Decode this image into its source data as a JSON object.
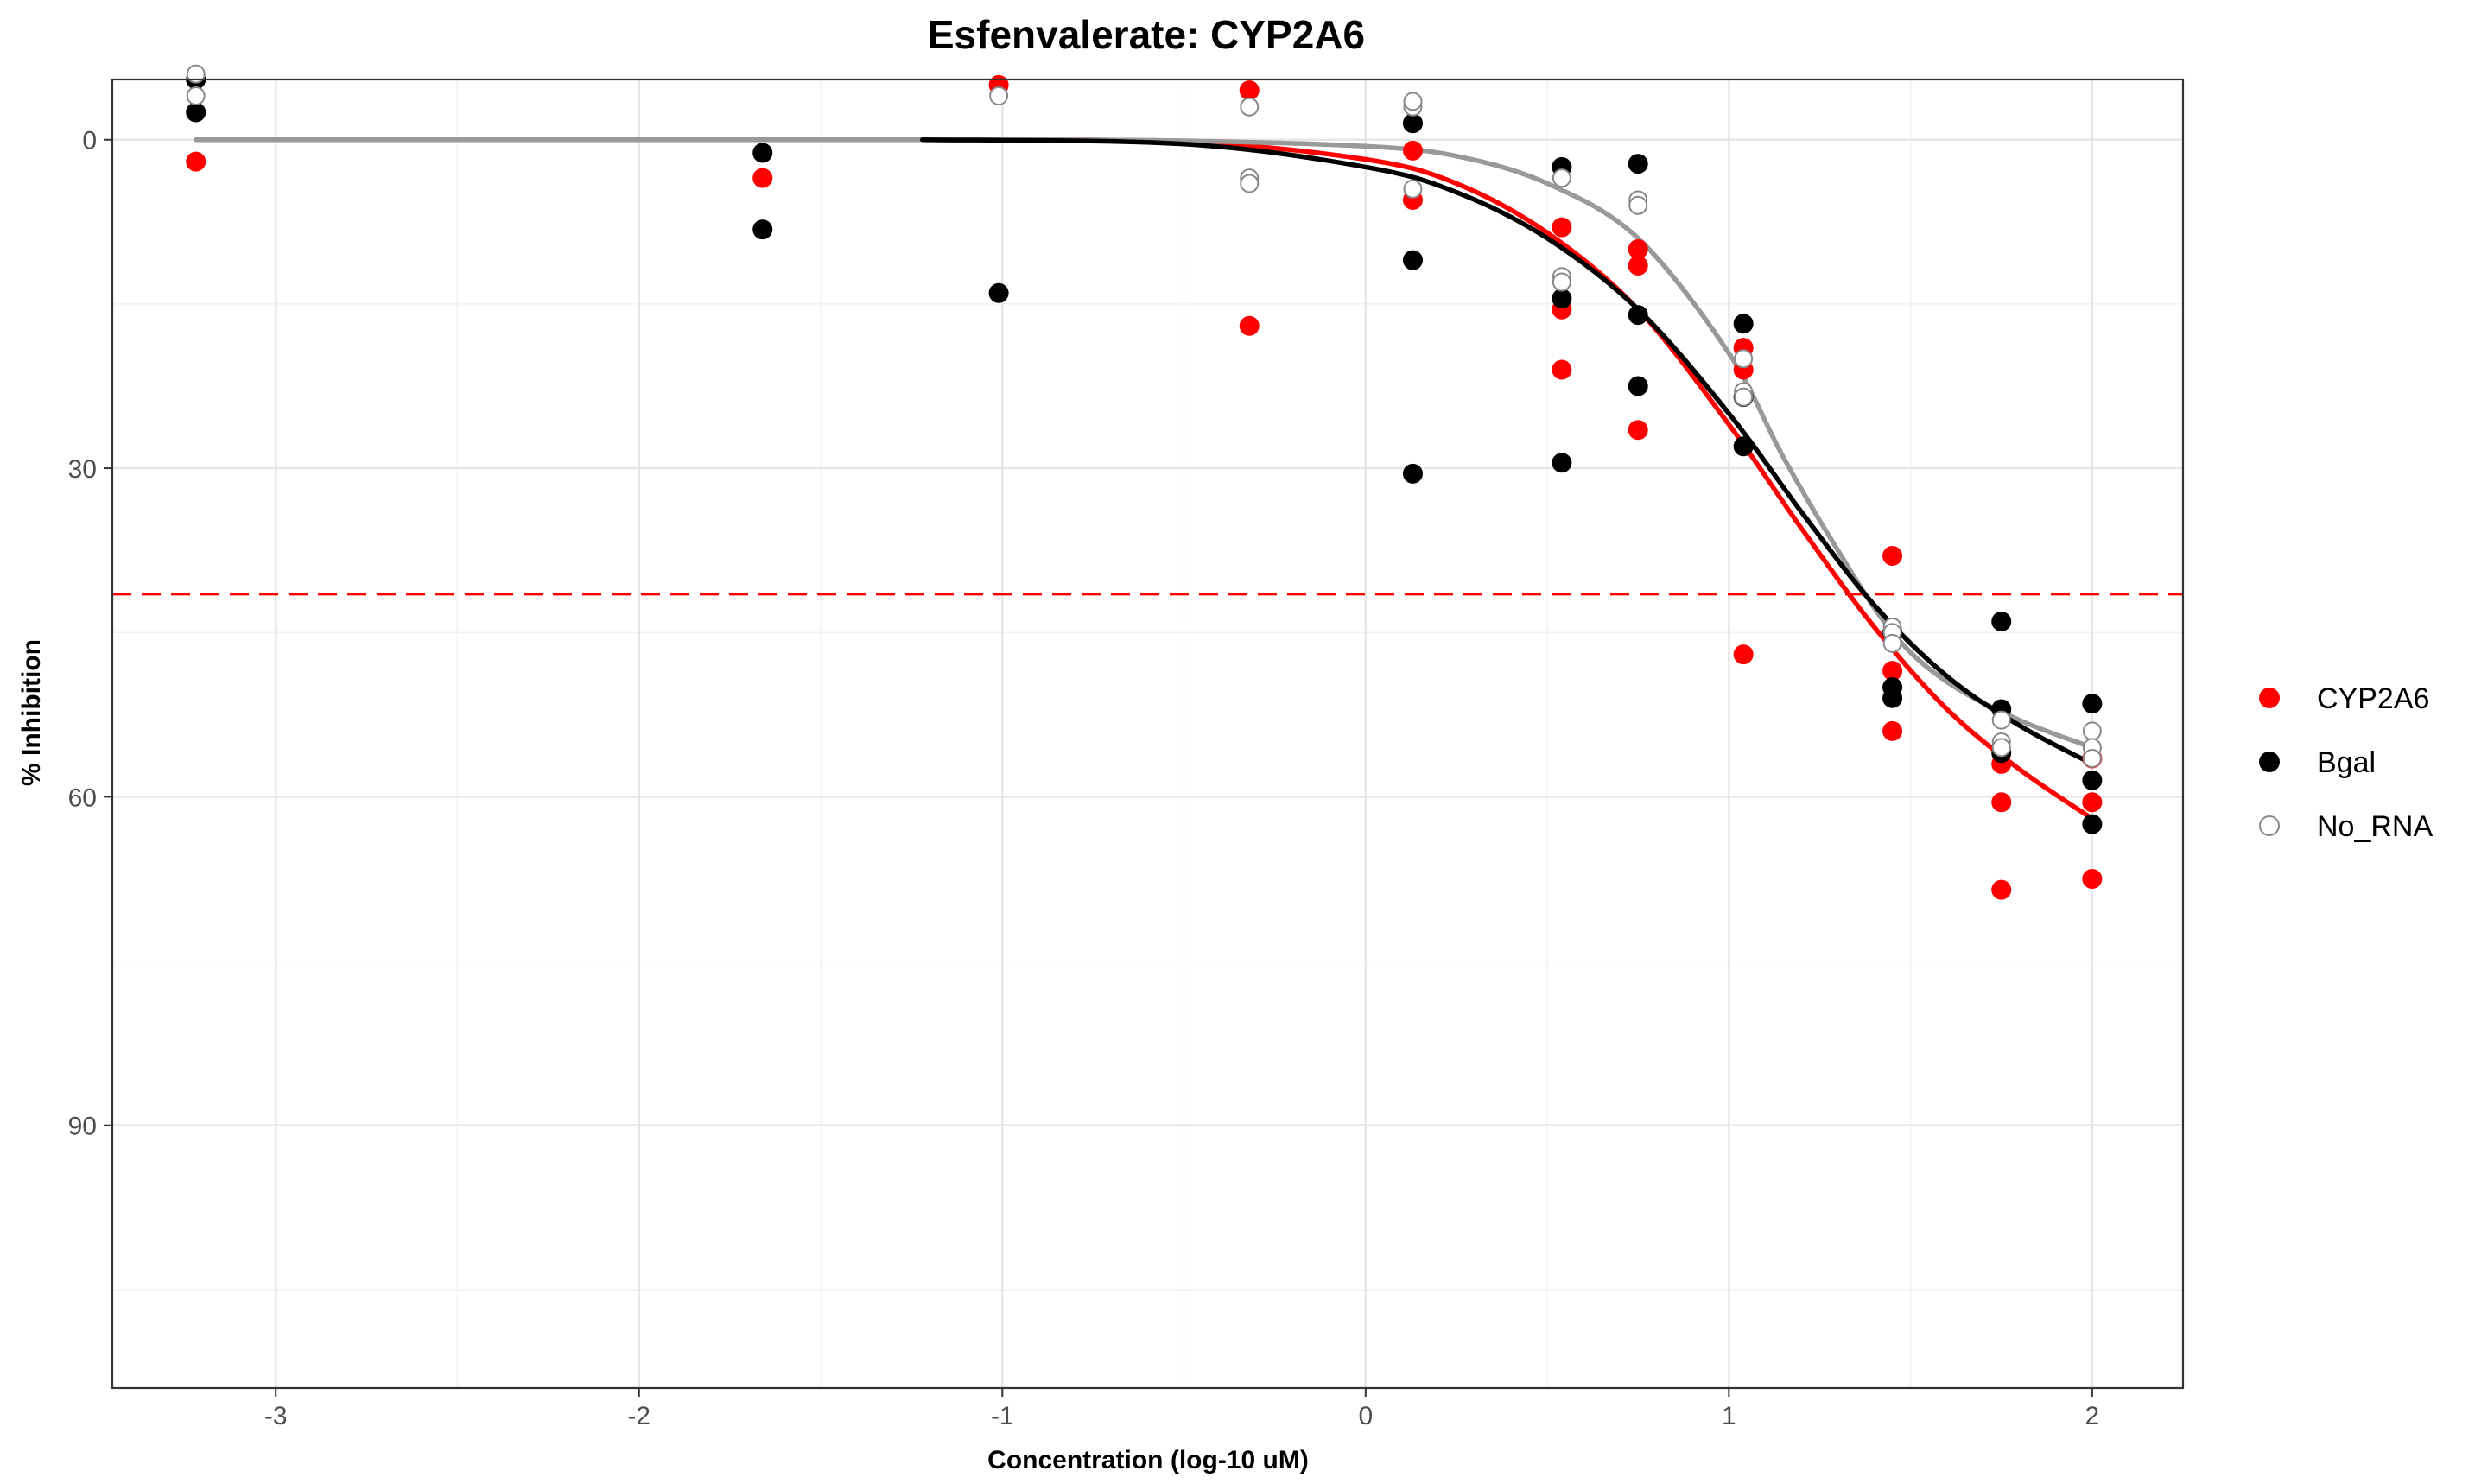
{
  "chart_data": {
    "type": "scatter",
    "title": "Esfenvalerate: CYP2A6",
    "xlabel": "Concentration (log-10 uM)",
    "ylabel": "% Inhibition",
    "xlim": [
      -3.45,
      2.25
    ],
    "ylim": [
      -5.5,
      114
    ],
    "y_reversed": true,
    "x_ticks": [
      -3,
      -2,
      -1,
      0,
      1,
      2
    ],
    "x_tick_labels": [
      "-3",
      "-2",
      "-1",
      "0",
      "1",
      "2"
    ],
    "y_ticks": [
      0,
      30,
      60,
      90
    ],
    "y_tick_labels": [
      "0",
      "30",
      "60",
      "90"
    ],
    "grid": true,
    "legend_position": "right",
    "reference_line": {
      "y": 41.5,
      "style": "dashed",
      "color": "#ff0000"
    },
    "series": [
      {
        "name": "CYP2A6",
        "color": "#ff0000",
        "marker": "filled-circle",
        "points": [
          [
            -3.22,
            2
          ],
          [
            -1.66,
            3.5
          ],
          [
            -1.01,
            -5
          ],
          [
            -0.32,
            -4.5
          ],
          [
            -0.32,
            17
          ],
          [
            0.13,
            1
          ],
          [
            0.13,
            5.5
          ],
          [
            0.54,
            8
          ],
          [
            0.54,
            15.5
          ],
          [
            0.54,
            21
          ],
          [
            0.75,
            10
          ],
          [
            0.75,
            11.5
          ],
          [
            0.75,
            26.5
          ],
          [
            1.04,
            19
          ],
          [
            1.04,
            21
          ],
          [
            1.04,
            47
          ],
          [
            1.45,
            38
          ],
          [
            1.45,
            48.5
          ],
          [
            1.45,
            54
          ],
          [
            1.75,
            57
          ],
          [
            1.75,
            60.5
          ],
          [
            1.75,
            68.5
          ],
          [
            2.0,
            56.5
          ],
          [
            2.0,
            60.5
          ],
          [
            2.0,
            67.5
          ]
        ],
        "curve": [
          [
            -1.22,
            0.0
          ],
          [
            -0.5,
            0.2
          ],
          [
            0.0,
            1.8
          ],
          [
            0.25,
            4.0
          ],
          [
            0.5,
            8.5
          ],
          [
            0.75,
            15.5
          ],
          [
            1.0,
            26.0
          ],
          [
            1.2,
            35.5
          ],
          [
            1.4,
            44.5
          ],
          [
            1.6,
            52.0
          ],
          [
            1.8,
            57.5
          ],
          [
            2.0,
            62.0
          ]
        ]
      },
      {
        "name": "Bgal",
        "color": "#000000",
        "marker": "filled-circle",
        "points": [
          [
            -3.22,
            -5.5
          ],
          [
            -3.22,
            -2.5
          ],
          [
            -1.66,
            1.2
          ],
          [
            -1.66,
            8.2
          ],
          [
            -1.01,
            14
          ],
          [
            0.13,
            -1.5
          ],
          [
            0.13,
            11
          ],
          [
            0.13,
            30.5
          ],
          [
            0.54,
            2.5
          ],
          [
            0.54,
            14.5
          ],
          [
            0.54,
            29.5
          ],
          [
            0.75,
            2.2
          ],
          [
            0.75,
            16
          ],
          [
            0.75,
            22.5
          ],
          [
            1.04,
            16.8
          ],
          [
            1.04,
            23.5
          ],
          [
            1.04,
            28
          ],
          [
            1.45,
            45
          ],
          [
            1.45,
            50
          ],
          [
            1.45,
            51
          ],
          [
            1.75,
            44
          ],
          [
            1.75,
            52
          ],
          [
            1.75,
            56
          ],
          [
            2.0,
            51.5
          ],
          [
            2.0,
            58.5
          ],
          [
            2.0,
            62.5
          ]
        ],
        "curve": [
          [
            -1.22,
            0.0
          ],
          [
            -0.5,
            0.4
          ],
          [
            0.0,
            2.5
          ],
          [
            0.25,
            4.8
          ],
          [
            0.5,
            9.0
          ],
          [
            0.75,
            15.5
          ],
          [
            1.0,
            25.0
          ],
          [
            1.2,
            34.0
          ],
          [
            1.4,
            42.5
          ],
          [
            1.6,
            49.0
          ],
          [
            1.8,
            53.5
          ],
          [
            2.0,
            57.0
          ]
        ]
      },
      {
        "name": "No_RNA",
        "color": "#999999",
        "marker": "open-circle",
        "points": [
          [
            -3.22,
            -6
          ],
          [
            -3.22,
            -4
          ],
          [
            -1.01,
            -4
          ],
          [
            -0.32,
            -3
          ],
          [
            -0.32,
            3.5
          ],
          [
            -0.32,
            4
          ],
          [
            0.13,
            -3
          ],
          [
            0.13,
            -3.5
          ],
          [
            0.13,
            4.5
          ],
          [
            0.54,
            3.5
          ],
          [
            0.54,
            12.5
          ],
          [
            0.54,
            13
          ],
          [
            0.75,
            5.5
          ],
          [
            0.75,
            6
          ],
          [
            1.04,
            20
          ],
          [
            1.04,
            23
          ],
          [
            1.04,
            23.5
          ],
          [
            1.45,
            44.5
          ],
          [
            1.45,
            45
          ],
          [
            1.45,
            46
          ],
          [
            1.75,
            53
          ],
          [
            1.75,
            55
          ],
          [
            1.75,
            55.5
          ],
          [
            2.0,
            54
          ],
          [
            2.0,
            55.5
          ],
          [
            2.0,
            56.5
          ]
        ],
        "curve": [
          [
            -3.22,
            0.0
          ],
          [
            -2.0,
            0.0
          ],
          [
            -1.0,
            0.0
          ],
          [
            -0.5,
            0.1
          ],
          [
            0.0,
            0.6
          ],
          [
            0.25,
            1.5
          ],
          [
            0.5,
            4.0
          ],
          [
            0.75,
            9.0
          ],
          [
            1.0,
            19.5
          ],
          [
            1.15,
            29.0
          ],
          [
            1.3,
            37.5
          ],
          [
            1.45,
            45.0
          ],
          [
            1.6,
            49.5
          ],
          [
            1.8,
            53.0
          ],
          [
            2.0,
            55.5
          ]
        ]
      }
    ]
  }
}
